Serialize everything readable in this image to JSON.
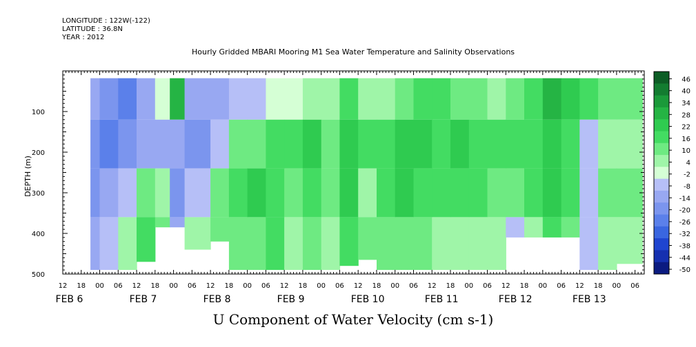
{
  "header": {
    "longitude": "LONGITUDE : 122W(-122)",
    "latitude": "LATITUDE : 36.8N",
    "year": "YEAR : 2012"
  },
  "chart_data": {
    "type": "heatmap",
    "title": "Hourly Gridded MBARI Mooring M1 Sea Water Temperature and Salinity Observations",
    "xlabel": "U Component of Water Velocity (cm s-1)",
    "ylabel": "DEPTH (m)",
    "ylim": [
      500,
      0
    ],
    "y_ticks": [
      100,
      200,
      300,
      400,
      500
    ],
    "x_start": "FEB 5 12:00",
    "x_end": "FEB 13 09:00",
    "hour_tick_labels": [
      "12",
      "18",
      "00",
      "06",
      "12",
      "18",
      "00",
      "06",
      "12",
      "18",
      "00",
      "06",
      "12",
      "18",
      "00",
      "06",
      "12",
      "18",
      "00",
      "06",
      "12",
      "18",
      "00",
      "06",
      "12",
      "18",
      "00",
      "06",
      "12",
      "18",
      "00",
      "06"
    ],
    "day_labels": [
      "FEB  6",
      "FEB  7",
      "FEB  8",
      "FEB  9",
      "FEB 10",
      "FEB 11",
      "FEB 12",
      "FEB 13"
    ],
    "colorbar": {
      "levels": [
        -50,
        -44,
        -38,
        -32,
        -26,
        -20,
        -14,
        -8,
        -2,
        4,
        10,
        16,
        22,
        28,
        34,
        40,
        46
      ],
      "labels": [
        "46",
        "40",
        "34",
        "28",
        "22",
        "16",
        "10",
        "4",
        "-2",
        "-8",
        "-14",
        "-20",
        "-26",
        "-32",
        "-38",
        "-44",
        "-50"
      ],
      "colors": [
        "#0b1b80",
        "#1530b0",
        "#1f45d0",
        "#3a66e0",
        "#5b80ea",
        "#7b95ee",
        "#98a8f2",
        "#b6bff7",
        "#d5ffd5",
        "#9ff5a8",
        "#6eea82",
        "#43dc62",
        "#2fcb50",
        "#25b444",
        "#1b9a3a",
        "#137c30",
        "#0d5d25"
      ]
    },
    "columns": [
      {
        "day": 5.875,
        "bottom": 490,
        "values": [
          -14,
          -18,
          -15,
          -12
        ]
      },
      {
        "day": 6.0,
        "bottom": 490,
        "values": [
          -20,
          -22,
          -12,
          -8
        ]
      },
      {
        "day": 6.25,
        "bottom": 490,
        "values": [
          -26,
          -18,
          -4,
          6
        ]
      },
      {
        "day": 6.5,
        "bottom": 470,
        "values": [
          -14,
          -10,
          12,
          16
        ]
      },
      {
        "day": 6.75,
        "bottom": 385,
        "values": [
          -2,
          -10,
          8,
          10
        ]
      },
      {
        "day": 6.95,
        "bottom": 385,
        "values": [
          28,
          -12,
          -16,
          -12
        ]
      },
      {
        "day": 7.15,
        "bottom": 440,
        "values": [
          -14,
          -18,
          -8,
          6
        ]
      },
      {
        "day": 7.5,
        "bottom": 420,
        "values": [
          -12,
          -4,
          10,
          14
        ]
      },
      {
        "day": 7.75,
        "bottom": 490,
        "values": [
          -8,
          12,
          18,
          14
        ]
      },
      {
        "day": 8.0,
        "bottom": 490,
        "values": [
          -4,
          14,
          22,
          10
        ]
      },
      {
        "day": 8.25,
        "bottom": 490,
        "values": [
          -2,
          16,
          20,
          16
        ]
      },
      {
        "day": 8.5,
        "bottom": 490,
        "values": [
          0,
          18,
          12,
          6
        ]
      },
      {
        "day": 8.75,
        "bottom": 490,
        "values": [
          4,
          22,
          18,
          14
        ]
      },
      {
        "day": 9.0,
        "bottom": 490,
        "values": [
          8,
          14,
          10,
          6
        ]
      },
      {
        "day": 9.25,
        "bottom": 480,
        "values": [
          16,
          22,
          24,
          18
        ]
      },
      {
        "day": 9.5,
        "bottom": 465,
        "values": [
          4,
          18,
          6,
          10
        ]
      },
      {
        "day": 9.75,
        "bottom": 490,
        "values": [
          6,
          20,
          16,
          12
        ]
      },
      {
        "day": 10.0,
        "bottom": 490,
        "values": [
          12,
          26,
          22,
          14
        ]
      },
      {
        "day": 10.25,
        "bottom": 490,
        "values": [
          18,
          24,
          20,
          10
        ]
      },
      {
        "day": 10.5,
        "bottom": 490,
        "values": [
          16,
          20,
          16,
          6
        ]
      },
      {
        "day": 10.75,
        "bottom": 490,
        "values": [
          14,
          22,
          18,
          8
        ]
      },
      {
        "day": 11.0,
        "bottom": 490,
        "values": [
          10,
          18,
          16,
          8
        ]
      },
      {
        "day": 11.25,
        "bottom": 490,
        "values": [
          8,
          16,
          14,
          4
        ]
      },
      {
        "day": 11.5,
        "bottom": 410,
        "values": [
          12,
          18,
          12,
          -6
        ]
      },
      {
        "day": 11.75,
        "bottom": 410,
        "values": [
          16,
          20,
          18,
          4
        ]
      },
      {
        "day": 12.0,
        "bottom": 410,
        "values": [
          30,
          26,
          24,
          16
        ]
      },
      {
        "day": 12.25,
        "bottom": 410,
        "values": [
          22,
          20,
          18,
          10
        ]
      },
      {
        "day": 12.5,
        "bottom": 490,
        "values": [
          16,
          -6,
          -8,
          -4
        ]
      },
      {
        "day": 12.75,
        "bottom": 490,
        "values": [
          12,
          4,
          10,
          8
        ]
      },
      {
        "day": 13.0,
        "bottom": 475,
        "values": [
          10,
          6,
          12,
          6
        ]
      }
    ],
    "grid": false,
    "colorbar_position": "right"
  }
}
